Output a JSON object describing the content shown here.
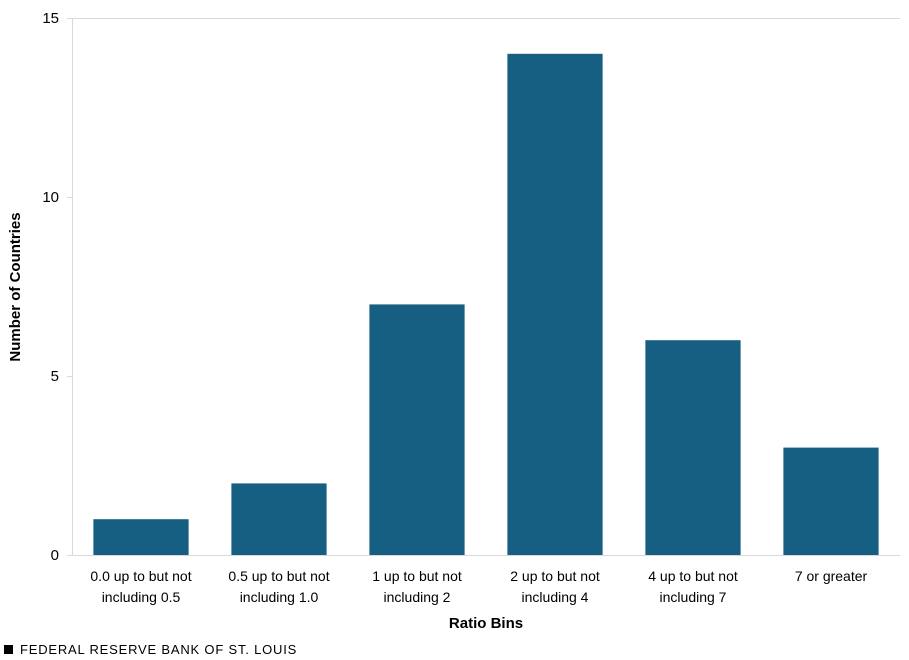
{
  "chart_data": {
    "type": "bar",
    "title": "",
    "xlabel": "Ratio Bins",
    "ylabel": "Number of Countries",
    "ylim": [
      0,
      15
    ],
    "yticks": [
      0,
      5,
      10,
      15
    ],
    "categories": [
      [
        "0.0 up to but not",
        "including 0.5"
      ],
      [
        "0.5 up to but not",
        "including 1.0"
      ],
      [
        "1 up to but not",
        "including 2"
      ],
      [
        "2 up to but not",
        "including 4"
      ],
      [
        "4 up to but not",
        "including 7"
      ],
      [
        "7 or greater"
      ]
    ],
    "values": [
      1,
      2,
      7,
      14,
      6,
      3
    ],
    "bar_color": "#175f82",
    "grid": false
  },
  "footer": {
    "label": "FEDERAL RESERVE BANK OF ST. LOUIS"
  }
}
